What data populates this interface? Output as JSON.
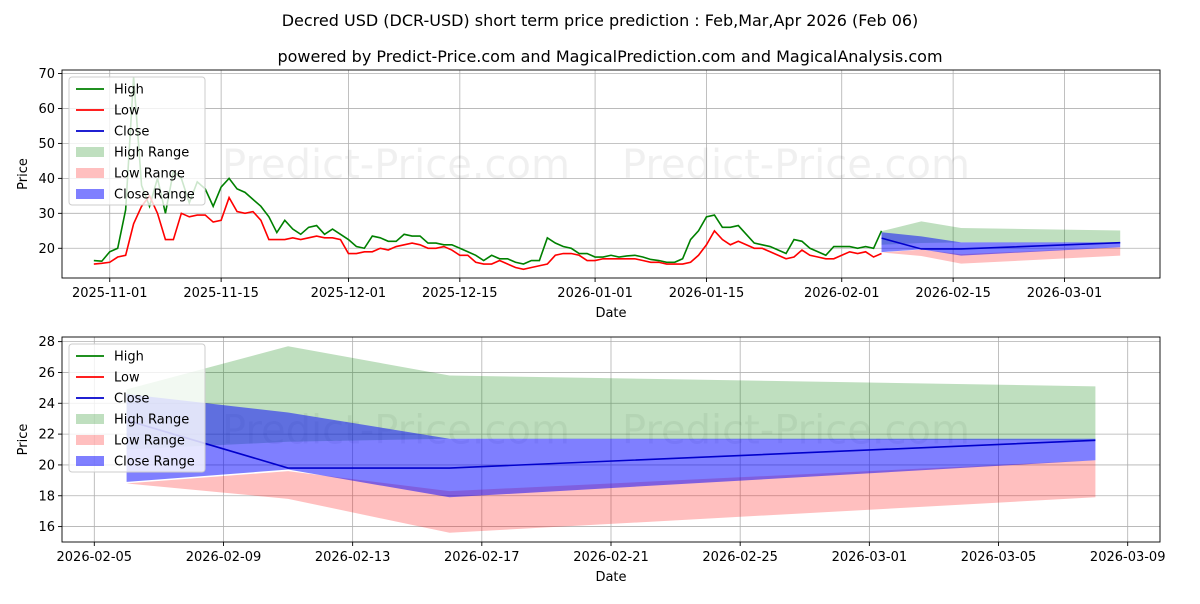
{
  "chart_data": [
    {
      "type": "line",
      "title": "Decred USD (DCR-USD) short term price prediction : Feb,Mar,Apr 2026 (Feb 06)",
      "subtitle": "powered by Predict-Price.com and MagicalPrediction.com and MagicalAnalysis.com",
      "watermark": "Predict-Price.com",
      "xlabel": "Date",
      "ylabel": "Price",
      "xlim": [
        "2025-10-26",
        "2026-03-13"
      ],
      "ylim": [
        11.5,
        71
      ],
      "x_ticks": [
        "2025-11-01",
        "2025-11-15",
        "2025-12-01",
        "2025-12-15",
        "2026-01-01",
        "2026-01-15",
        "2026-02-01",
        "2026-02-15",
        "2026-03-01"
      ],
      "y_ticks": [
        20,
        30,
        40,
        50,
        60,
        70
      ],
      "legend": [
        "High",
        "Low",
        "Close",
        "High Range",
        "Low Range",
        "Close Range"
      ],
      "history_dates": [
        "2025-10-30",
        "2025-10-31",
        "2025-11-01",
        "2025-11-02",
        "2025-11-03",
        "2025-11-04",
        "2025-11-05",
        "2025-11-06",
        "2025-11-07",
        "2025-11-08",
        "2025-11-09",
        "2025-11-10",
        "2025-11-11",
        "2025-11-12",
        "2025-11-13",
        "2025-11-14",
        "2025-11-15",
        "2025-11-16",
        "2025-11-17",
        "2025-11-18",
        "2025-11-19",
        "2025-11-20",
        "2025-11-21",
        "2025-11-22",
        "2025-11-23",
        "2025-11-24",
        "2025-11-25",
        "2025-11-26",
        "2025-11-27",
        "2025-11-28",
        "2025-11-29",
        "2025-11-30",
        "2025-12-01",
        "2025-12-02",
        "2025-12-03",
        "2025-12-04",
        "2025-12-05",
        "2025-12-06",
        "2025-12-07",
        "2025-12-08",
        "2025-12-09",
        "2025-12-10",
        "2025-12-11",
        "2025-12-12",
        "2025-12-13",
        "2025-12-14",
        "2025-12-15",
        "2025-12-16",
        "2025-12-17",
        "2025-12-18",
        "2025-12-19",
        "2025-12-20",
        "2025-12-21",
        "2025-12-22",
        "2025-12-23",
        "2025-12-24",
        "2025-12-25",
        "2025-12-26",
        "2025-12-27",
        "2025-12-28",
        "2025-12-29",
        "2025-12-30",
        "2025-12-31",
        "2026-01-01",
        "2026-01-02",
        "2026-01-03",
        "2026-01-04",
        "2026-01-05",
        "2026-01-06",
        "2026-01-07",
        "2026-01-08",
        "2026-01-09",
        "2026-01-10",
        "2026-01-11",
        "2026-01-12",
        "2026-01-13",
        "2026-01-14",
        "2026-01-15",
        "2026-01-16",
        "2026-01-17",
        "2026-01-18",
        "2026-01-19",
        "2026-01-20",
        "2026-01-21",
        "2026-01-22",
        "2026-01-23",
        "2026-01-24",
        "2026-01-25",
        "2026-01-26",
        "2026-01-27",
        "2026-01-28",
        "2026-01-29",
        "2026-01-30",
        "2026-01-31",
        "2026-02-01",
        "2026-02-02",
        "2026-02-03",
        "2026-02-04",
        "2026-02-05",
        "2026-02-06"
      ],
      "series": [
        {
          "name": "High",
          "color": "#008000",
          "values": [
            16.5,
            16.3,
            19.0,
            20.0,
            31.0,
            69.0,
            38.0,
            32.0,
            40.0,
            30.0,
            42.0,
            40.0,
            33.0,
            39.0,
            37.0,
            32.0,
            37.5,
            40.0,
            37.0,
            36.0,
            34.0,
            32.0,
            29.0,
            24.5,
            28.0,
            25.5,
            24.0,
            26.0,
            26.5,
            24.0,
            25.5,
            24.0,
            22.5,
            20.5,
            20.0,
            23.5,
            23.0,
            22.0,
            22.0,
            24.0,
            23.5,
            23.5,
            21.5,
            21.5,
            21.0,
            21.0,
            20.0,
            19.0,
            18.0,
            16.5,
            18.0,
            17.0,
            17.0,
            16.0,
            15.5,
            16.5,
            16.5,
            23.0,
            21.5,
            20.5,
            20.0,
            18.5,
            18.5,
            17.5,
            17.5,
            18.0,
            17.5,
            17.8,
            18.0,
            17.5,
            16.8,
            16.5,
            16.0,
            16.0,
            17.0,
            22.5,
            25.0,
            29.0,
            29.5,
            26.0,
            26.0,
            26.5,
            24.0,
            21.5,
            21.0,
            20.5,
            19.5,
            18.5,
            22.5,
            22.0,
            20.0,
            19.0,
            18.0,
            20.5,
            20.5,
            20.5,
            20.0,
            20.5,
            20.0,
            25.0
          ]
        },
        {
          "name": "Low",
          "color": "#ff0000",
          "values": [
            15.5,
            15.7,
            16.0,
            17.5,
            18.0,
            27.0,
            32.0,
            35.0,
            30.0,
            22.5,
            22.5,
            30.0,
            29.0,
            29.5,
            29.5,
            27.5,
            28.0,
            34.5,
            30.5,
            30.0,
            30.5,
            28.0,
            22.5,
            22.5,
            22.5,
            23.0,
            22.5,
            23.0,
            23.5,
            23.0,
            23.0,
            22.5,
            18.5,
            18.5,
            19.0,
            19.0,
            20.0,
            19.5,
            20.5,
            21.0,
            21.5,
            21.0,
            20.0,
            20.0,
            20.5,
            19.5,
            18.0,
            18.0,
            16.0,
            15.5,
            15.5,
            16.5,
            15.5,
            14.5,
            14.0,
            14.5,
            15.0,
            15.5,
            18.0,
            18.5,
            18.5,
            18.0,
            16.5,
            16.5,
            17.0,
            17.0,
            17.0,
            17.0,
            17.0,
            16.5,
            16.0,
            16.0,
            15.5,
            15.5,
            15.5,
            16.0,
            18.0,
            21.0,
            25.0,
            22.5,
            21.0,
            22.0,
            21.0,
            20.0,
            20.0,
            19.0,
            18.0,
            17.0,
            17.5,
            19.5,
            18.0,
            17.5,
            17.0,
            17.0,
            18.0,
            19.0,
            18.5,
            19.0,
            17.5,
            18.5
          ]
        },
        {
          "name": "Close",
          "color": "#0000cc",
          "dates": [
            "2026-02-06",
            "2026-02-11",
            "2026-02-16",
            "2026-03-08"
          ],
          "values": [
            22.9,
            19.8,
            19.8,
            21.6
          ]
        }
      ],
      "ranges": [
        {
          "name": "High Range",
          "color": "#008000",
          "alpha": 0.25,
          "dates": [
            "2026-02-06",
            "2026-02-11",
            "2026-02-16",
            "2026-03-08"
          ],
          "lower": [
            21.0,
            21.5,
            21.7,
            21.6
          ],
          "upper": [
            24.9,
            27.7,
            25.8,
            25.1
          ]
        },
        {
          "name": "Low Range",
          "color": "#ff0000",
          "alpha": 0.25,
          "dates": [
            "2026-02-06",
            "2026-02-11",
            "2026-02-16",
            "2026-03-08"
          ],
          "lower": [
            18.8,
            17.8,
            15.6,
            17.9
          ],
          "upper": [
            18.8,
            19.6,
            18.3,
            20.3
          ]
        },
        {
          "name": "Close Range",
          "color": "#0000ff",
          "alpha": 0.5,
          "dates": [
            "2026-02-06",
            "2026-02-11",
            "2026-02-16",
            "2026-03-08"
          ],
          "lower": [
            18.9,
            19.7,
            17.9,
            20.3
          ],
          "upper": [
            24.6,
            23.4,
            21.7,
            21.7
          ]
        }
      ]
    },
    {
      "type": "line",
      "xlabel": "Date",
      "ylabel": "Price",
      "xlim": [
        "2026-02-04",
        "2026-03-10"
      ],
      "ylim": [
        15,
        28.3
      ],
      "x_ticks": [
        "2026-02-05",
        "2026-02-09",
        "2026-02-13",
        "2026-02-17",
        "2026-02-21",
        "2026-02-25",
        "2026-03-01",
        "2026-03-05",
        "2026-03-09"
      ],
      "y_ticks": [
        16,
        18,
        20,
        22,
        24,
        26,
        28
      ],
      "legend": [
        "High",
        "Low",
        "Close",
        "High Range",
        "Low Range",
        "Close Range"
      ],
      "series": [
        {
          "name": "Close",
          "color": "#0000cc",
          "dates": [
            "2026-02-06",
            "2026-02-11",
            "2026-02-16",
            "2026-03-08"
          ],
          "values": [
            22.9,
            19.8,
            19.8,
            21.6
          ]
        }
      ],
      "ranges": [
        {
          "name": "High Range",
          "color": "#008000",
          "alpha": 0.25,
          "dates": [
            "2026-02-06",
            "2026-02-11",
            "2026-02-16",
            "2026-03-08"
          ],
          "lower": [
            21.0,
            21.5,
            21.7,
            21.6
          ],
          "upper": [
            24.9,
            27.7,
            25.8,
            25.1
          ]
        },
        {
          "name": "Low Range",
          "color": "#ff0000",
          "alpha": 0.25,
          "dates": [
            "2026-02-06",
            "2026-02-11",
            "2026-02-16",
            "2026-03-08"
          ],
          "lower": [
            18.8,
            17.8,
            15.6,
            17.9
          ],
          "upper": [
            18.8,
            19.6,
            18.3,
            20.3
          ]
        },
        {
          "name": "Close Range",
          "color": "#0000ff",
          "alpha": 0.5,
          "dates": [
            "2026-02-06",
            "2026-02-11",
            "2026-02-16",
            "2026-03-08"
          ],
          "lower": [
            18.9,
            19.7,
            17.9,
            20.3
          ],
          "upper": [
            24.6,
            23.4,
            21.7,
            21.7
          ]
        }
      ]
    }
  ]
}
